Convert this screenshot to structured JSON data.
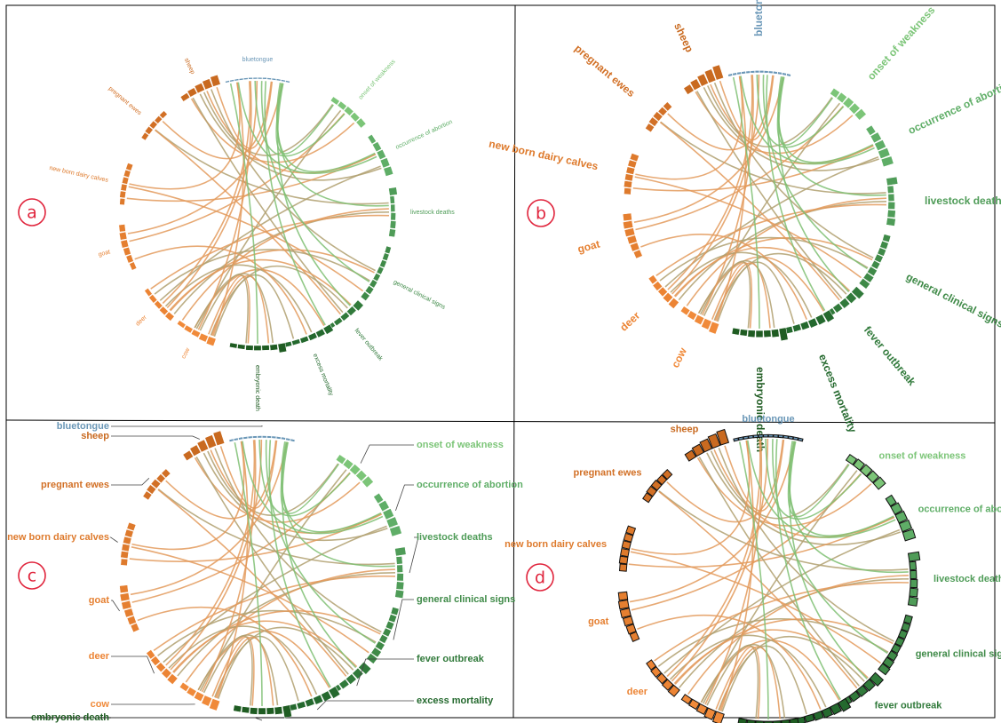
{
  "panels": [
    {
      "badge": "a",
      "style": "rotated-small"
    },
    {
      "badge": "b",
      "style": "rotated-large"
    },
    {
      "badge": "c",
      "style": "leader-lines"
    },
    {
      "badge": "d",
      "style": "horizontal-outlined"
    }
  ],
  "groups": [
    {
      "id": "bluetongue",
      "label": "bluetongue",
      "category": "disease",
      "color": "#6a97b7",
      "bars": [
        3,
        3,
        3,
        3,
        3,
        3,
        3,
        3,
        3,
        3,
        3,
        3,
        3,
        3
      ]
    },
    {
      "id": "onset",
      "label": "onset of weakness",
      "category": "symptom",
      "color": "#7cc578",
      "bars": [
        9,
        10,
        11,
        11,
        12
      ]
    },
    {
      "id": "abortion",
      "label": "occurrence of abortion",
      "category": "symptom",
      "color": "#5fae67",
      "bars": [
        9,
        11,
        12,
        13,
        14
      ]
    },
    {
      "id": "deaths",
      "label": "livestock deaths",
      "category": "symptom",
      "color": "#4f9c58",
      "bars": [
        14,
        8,
        8,
        9,
        10,
        11
      ]
    },
    {
      "id": "clinical",
      "label": "general clinical signs",
      "category": "symptom",
      "color": "#3f8a48",
      "bars": [
        9,
        9,
        9,
        9,
        9,
        10,
        11,
        12
      ]
    },
    {
      "id": "fever",
      "label": "fever outbreak",
      "category": "symptom",
      "color": "#317a3b",
      "bars": [
        14,
        11,
        10,
        9,
        8
      ]
    },
    {
      "id": "mortality",
      "label": "excess mortality",
      "category": "symptom",
      "color": "#24692e",
      "bars": [
        13,
        11,
        10,
        9,
        8,
        8
      ]
    },
    {
      "id": "embryonic",
      "label": "embryonic death",
      "category": "symptom",
      "color": "#1f5c22",
      "bars": [
        16,
        10,
        9,
        9,
        9,
        8,
        8
      ]
    },
    {
      "id": "cow",
      "label": "cow",
      "category": "host",
      "color": "#f08a3a",
      "bars": [
        14,
        12,
        10,
        9,
        8
      ]
    },
    {
      "id": "deer",
      "label": "deer",
      "category": "host",
      "color": "#ec8434",
      "bars": [
        11,
        10,
        9,
        9,
        8
      ]
    },
    {
      "id": "goat",
      "label": "goat",
      "category": "host",
      "color": "#e57f30",
      "bars": [
        9,
        10,
        11,
        12,
        12,
        11
      ]
    },
    {
      "id": "calves",
      "label": "new born dairy calves",
      "category": "host",
      "color": "#de7a2c",
      "bars": [
        9,
        10,
        10,
        10,
        10,
        10
      ]
    },
    {
      "id": "ewes",
      "label": "pregnant ewes",
      "category": "host",
      "color": "#d27026",
      "bars": [
        9,
        10,
        10,
        9,
        9
      ]
    },
    {
      "id": "sheep",
      "label": "sheep",
      "category": "host",
      "color": "#c96a20",
      "bars": [
        10,
        12,
        14,
        16,
        18
      ]
    }
  ],
  "link_colors": {
    "host": "#e39a5c",
    "disease": "#7fbf73",
    "mixed": "#b0a070"
  }
}
